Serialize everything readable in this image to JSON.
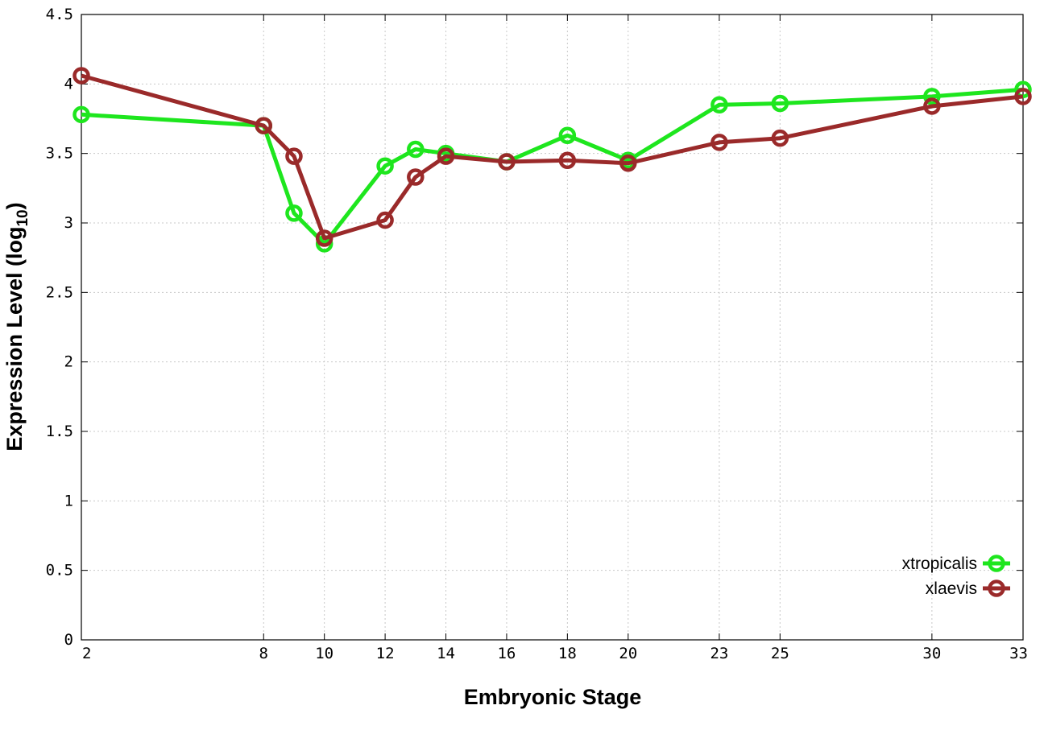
{
  "chart_data": {
    "type": "line",
    "title": "",
    "xlabel": "Embryonic Stage",
    "ylabel_main": "Expression Level (log",
    "ylabel_sub": "10",
    "ylabel_close": ")",
    "xlim": [
      2,
      33
    ],
    "ylim": [
      0,
      4.5
    ],
    "grid": true,
    "legend_position": "bottom-right",
    "x_ticks": [
      2,
      8,
      10,
      12,
      14,
      16,
      18,
      20,
      23,
      25,
      30,
      33
    ],
    "y_ticks": [
      0,
      0.5,
      1,
      1.5,
      2,
      2.5,
      3,
      3.5,
      4,
      4.5
    ],
    "y_tick_labels": [
      "0",
      "0.5",
      "1",
      "1.5",
      "2",
      "2.5",
      "3",
      "3.5",
      "4",
      "4.5"
    ],
    "x": [
      2,
      8,
      9,
      10,
      12,
      13,
      14,
      16,
      18,
      20,
      23,
      25,
      30,
      33
    ],
    "series": [
      {
        "name": "xtropicalis",
        "color": "#1ee61e",
        "values": [
          3.78,
          3.7,
          3.07,
          2.85,
          3.41,
          3.53,
          3.5,
          3.44,
          3.63,
          3.45,
          3.85,
          3.86,
          3.91,
          3.96
        ]
      },
      {
        "name": "xlaevis",
        "color": "#9a2a2a",
        "values": [
          4.06,
          3.7,
          3.48,
          2.89,
          3.02,
          3.33,
          3.48,
          3.44,
          3.45,
          3.43,
          3.58,
          3.61,
          3.84,
          3.91
        ]
      }
    ]
  }
}
